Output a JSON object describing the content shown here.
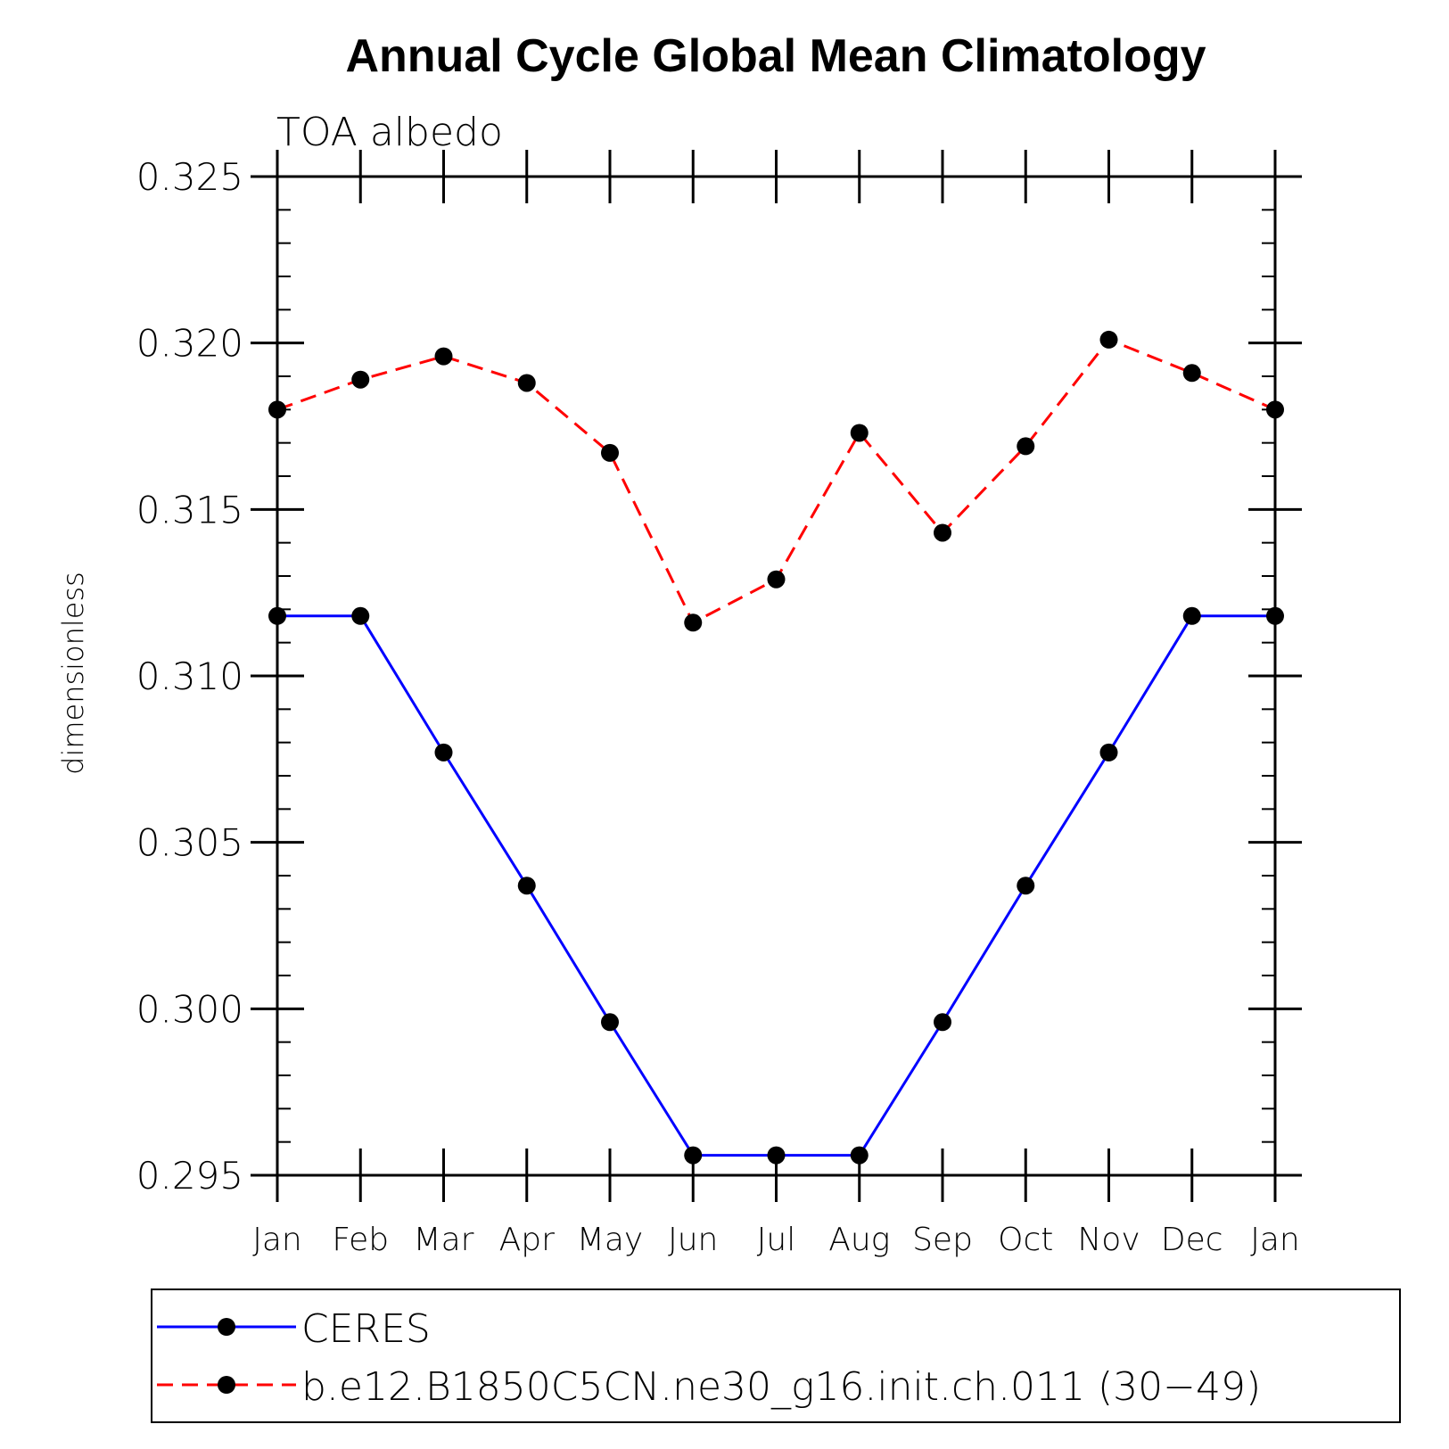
{
  "chart_data": {
    "type": "line",
    "title": "Annual Cycle Global Mean Climatology",
    "subtitle": "TOA albedo",
    "xlabel": "",
    "ylabel": "dimensionless",
    "categories": [
      "Jan",
      "Feb",
      "Mar",
      "Apr",
      "May",
      "Jun",
      "Jul",
      "Aug",
      "Sep",
      "Oct",
      "Nov",
      "Dec",
      "Jan"
    ],
    "ylim": [
      0.295,
      0.325
    ],
    "yticks": [
      "0.295",
      "0.300",
      "0.305",
      "0.310",
      "0.315",
      "0.320",
      "0.325"
    ],
    "ytick_values": [
      0.295,
      0.3,
      0.305,
      0.31,
      0.315,
      0.32,
      0.325
    ],
    "grid": false,
    "legend_position": "bottom",
    "series": [
      {
        "name": "CERES",
        "color": "#0000ff",
        "style": "solid",
        "marker": "circle",
        "values": [
          0.3118,
          0.3118,
          0.3077,
          0.3037,
          0.2996,
          0.2956,
          0.2956,
          0.2956,
          0.2996,
          0.3037,
          0.3077,
          0.3118,
          0.3118
        ]
      },
      {
        "name": "b.e12.B1850C5CN.ne30_g16.init.ch.011 (30−49)",
        "color": "#ff0000",
        "style": "dashed",
        "marker": "circle",
        "values": [
          0.318,
          0.3189,
          0.3196,
          0.3188,
          0.3167,
          0.3116,
          0.3129,
          0.3173,
          0.3143,
          0.3169,
          0.3201,
          0.3191,
          0.318
        ]
      }
    ]
  }
}
